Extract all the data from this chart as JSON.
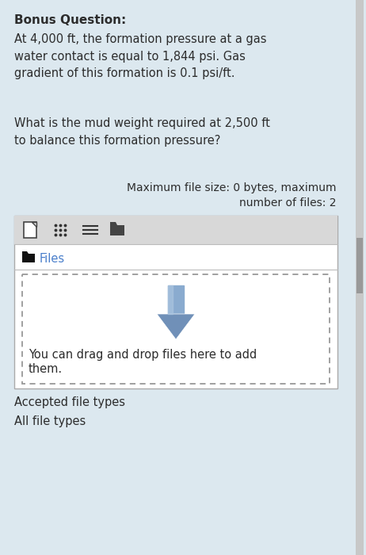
{
  "bg_color": "#dce8ef",
  "title_bold": "Bonus Question:",
  "paragraph1": "At 4,000 ft, the formation pressure at a gas\nwater contact is equal to 1,844 psi. Gas\ngradient of this formation is 0.1 psi/ft.",
  "paragraph2": "What is the mud weight required at 2,500 ft\nto balance this formation pressure?",
  "max_file_label": "Maximum file size: 0 bytes, maximum\nnumber of files: 2",
  "files_label": "Files",
  "drag_drop_text1": "You can drag and drop files here to add",
  "drag_drop_text2": "them.",
  "accepted_label": "Accepted file types",
  "all_types_label": "All file types",
  "text_color": "#2c2c2c",
  "box_bg": "#ffffff",
  "toolbar_bg": "#d8d8d8",
  "dashed_border_color": "#999999",
  "arrow_color_top": "#8aabcf",
  "arrow_color_mid": "#7090b8",
  "arrow_color_bot": "#6080a8",
  "files_link_color": "#4a7fcb",
  "scrollbar_track": "#c8c8c8",
  "scrollbar_thumb": "#999999",
  "font_size_title": 11,
  "font_size_body": 10.5,
  "font_size_small": 10
}
